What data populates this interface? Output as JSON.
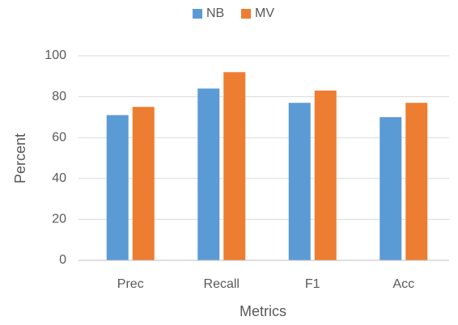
{
  "chart_data": {
    "type": "bar",
    "categories": [
      "Prec",
      "Recall",
      "F1",
      "Acc"
    ],
    "series": [
      {
        "name": "NB",
        "color": "#5b9bd5",
        "values": [
          71,
          84,
          77,
          70
        ]
      },
      {
        "name": "MV",
        "color": "#ed7d31",
        "values": [
          75,
          92,
          83,
          77
        ]
      }
    ],
    "x_label": "Metrics",
    "y_label": "Percent",
    "ylim": [
      0,
      100
    ],
    "yticks": [
      0,
      20,
      40,
      60,
      80,
      100
    ],
    "grid": true,
    "legend": "top"
  }
}
